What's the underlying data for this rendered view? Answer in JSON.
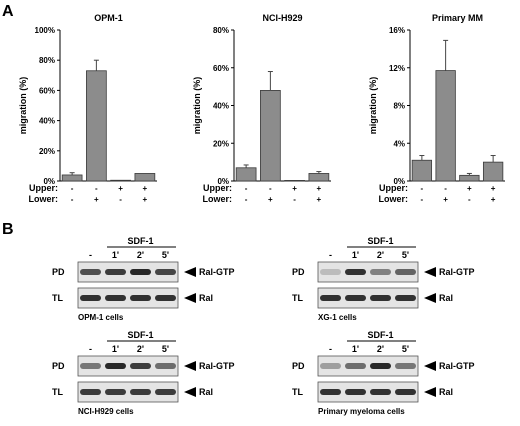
{
  "panel_labels": {
    "a": "A",
    "b": "B"
  },
  "chart_data": [
    {
      "type": "bar",
      "title": "OPM-1",
      "ylabel": "migration (%)",
      "ylim": [
        0,
        100
      ],
      "yticks": [
        "0%",
        "20%",
        "40%",
        "60%",
        "80%",
        "100%"
      ],
      "ytick_values": [
        0,
        20,
        40,
        60,
        80,
        100
      ],
      "values": [
        4,
        73,
        0.5,
        5
      ],
      "errors": [
        1.5,
        7,
        0,
        0
      ],
      "upper": [
        "-",
        "-",
        "+",
        "+"
      ],
      "lower": [
        "-",
        "+",
        "-",
        "+"
      ]
    },
    {
      "type": "bar",
      "title": "NCI-H929",
      "ylabel": "migration (%)",
      "ylim": [
        0,
        80
      ],
      "yticks": [
        "0%",
        "20%",
        "40%",
        "60%",
        "80%"
      ],
      "ytick_values": [
        0,
        20,
        40,
        60,
        80
      ],
      "values": [
        7,
        48,
        0.3,
        4
      ],
      "errors": [
        1.5,
        10,
        0,
        1
      ],
      "upper": [
        "-",
        "-",
        "+",
        "+"
      ],
      "lower": [
        "-",
        "+",
        "-",
        "+"
      ]
    },
    {
      "type": "bar",
      "title": "Primary MM",
      "ylabel": "migration (%)",
      "ylim": [
        0,
        16
      ],
      "yticks": [
        "0%",
        "4%",
        "8%",
        "12%",
        "16%"
      ],
      "ytick_values": [
        0,
        4,
        8,
        12,
        16
      ],
      "values": [
        2.2,
        11.7,
        0.6,
        2.0
      ],
      "errors": [
        0.5,
        3.2,
        0.2,
        0.7
      ],
      "upper": [
        "-",
        "-",
        "+",
        "+"
      ],
      "lower": [
        "-",
        "+",
        "-",
        "+"
      ]
    }
  ],
  "row_labels": {
    "upper": "Upper:",
    "lower": "Lower:"
  },
  "blots": [
    {
      "caption": "OPM-1 cells",
      "treatment": "SDF-1",
      "lanes": [
        "-",
        "1'",
        "2'",
        "5'"
      ],
      "rows": [
        "PD",
        "TL"
      ],
      "arrows": [
        "Ral-GTP",
        "Ral"
      ],
      "pd_intensity": [
        0.75,
        0.85,
        0.95,
        0.8
      ],
      "tl_intensity": [
        0.9,
        0.9,
        0.9,
        0.9
      ]
    },
    {
      "caption": "XG-1 cells",
      "treatment": "SDF-1",
      "lanes": [
        "-",
        "1'",
        "2'",
        "5'"
      ],
      "rows": [
        "PD",
        "TL"
      ],
      "arrows": [
        "Ral-GTP",
        "Ral"
      ],
      "pd_intensity": [
        0.2,
        0.9,
        0.5,
        0.65
      ],
      "tl_intensity": [
        0.9,
        0.9,
        0.9,
        0.9
      ]
    },
    {
      "caption": "NCI-H929 cells",
      "treatment": "SDF-1",
      "lanes": [
        "-",
        "1'",
        "2'",
        "5'"
      ],
      "rows": [
        "PD",
        "TL"
      ],
      "arrows": [
        "Ral-GTP",
        "Ral"
      ],
      "pd_intensity": [
        0.55,
        0.95,
        0.85,
        0.6
      ],
      "tl_intensity": [
        0.85,
        0.85,
        0.85,
        0.85
      ]
    },
    {
      "caption": "Primary myeloma cells",
      "treatment": "SDF-1",
      "lanes": [
        "-",
        "1'",
        "2'",
        "5'"
      ],
      "rows": [
        "PD",
        "TL"
      ],
      "arrows": [
        "Ral-GTP",
        "Ral"
      ],
      "pd_intensity": [
        0.35,
        0.6,
        0.95,
        0.55
      ],
      "tl_intensity": [
        0.9,
        0.9,
        0.9,
        0.9
      ]
    }
  ],
  "colors": {
    "bar": "#8c8c8c",
    "bar_edge": "#3a3a3a",
    "band": "#1e1e1e",
    "gel": "#e4e4e4"
  }
}
